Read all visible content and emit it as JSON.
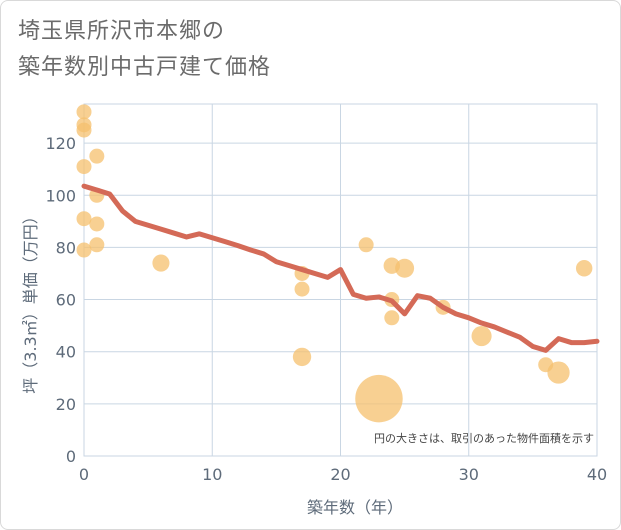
{
  "title_lines": [
    "埼玉県所沢市本郷の",
    "築年数別中古戸建て価格"
  ],
  "colors": {
    "line": "#d46a57",
    "bubble": "#f5c06e",
    "grid": "#c9d6e3",
    "text": "#5e6b7a"
  },
  "chart_data": {
    "type": "scatter",
    "title": "埼玉県所沢市本郷の築年数別中古戸建て価格",
    "xlabel": "築年数（年）",
    "ylabel": "坪（3.3㎡）単価（万円）",
    "xlim": [
      0,
      40
    ],
    "ylim": [
      0,
      135
    ],
    "xticks": [
      0,
      10,
      20,
      30,
      40
    ],
    "yticks": [
      0,
      20,
      40,
      60,
      80,
      100,
      120
    ],
    "grid": true,
    "note": "円の大きさは、取引のあった物件面積を示す",
    "bubbles": [
      {
        "x": 0,
        "y": 132,
        "size": 1
      },
      {
        "x": 0,
        "y": 127,
        "size": 1
      },
      {
        "x": 0,
        "y": 125,
        "size": 1
      },
      {
        "x": 0,
        "y": 111,
        "size": 1
      },
      {
        "x": 0,
        "y": 91,
        "size": 1
      },
      {
        "x": 0,
        "y": 79,
        "size": 1
      },
      {
        "x": 1,
        "y": 115,
        "size": 1
      },
      {
        "x": 1,
        "y": 100,
        "size": 1
      },
      {
        "x": 1,
        "y": 89,
        "size": 1
      },
      {
        "x": 1,
        "y": 81,
        "size": 1
      },
      {
        "x": 6,
        "y": 74,
        "size": 1.3
      },
      {
        "x": 17,
        "y": 70,
        "size": 1
      },
      {
        "x": 17,
        "y": 64,
        "size": 1
      },
      {
        "x": 17,
        "y": 38,
        "size": 1.5
      },
      {
        "x": 22,
        "y": 81,
        "size": 1
      },
      {
        "x": 23,
        "y": 22,
        "size": 10
      },
      {
        "x": 24,
        "y": 73,
        "size": 1.2
      },
      {
        "x": 24,
        "y": 60,
        "size": 1
      },
      {
        "x": 24,
        "y": 53,
        "size": 1
      },
      {
        "x": 25,
        "y": 72,
        "size": 1.6
      },
      {
        "x": 28,
        "y": 57,
        "size": 1
      },
      {
        "x": 31,
        "y": 46,
        "size": 1.8
      },
      {
        "x": 36,
        "y": 35,
        "size": 1
      },
      {
        "x": 37,
        "y": 32,
        "size": 2.2
      },
      {
        "x": 39,
        "y": 72,
        "size": 1.2
      }
    ],
    "trend_line": {
      "x": [
        0,
        1,
        2,
        3,
        4,
        5,
        6,
        7,
        8,
        9,
        10,
        11,
        12,
        13,
        14,
        15,
        16,
        17,
        18,
        19,
        20,
        21,
        22,
        23,
        24,
        25,
        26,
        27,
        28,
        29,
        30,
        31,
        32,
        33,
        34,
        35,
        36,
        37,
        38,
        39,
        40
      ],
      "y": [
        103.5,
        102,
        100.5,
        94,
        90,
        88.5,
        87,
        85.5,
        84,
        85.2,
        83.7,
        82.2,
        80.7,
        79,
        77.5,
        74.5,
        73,
        71.5,
        70,
        68.5,
        71.5,
        62,
        60.5,
        61,
        59.5,
        54.5,
        61.5,
        60.5,
        57,
        54.5,
        53,
        51,
        49.5,
        47.5,
        45.5,
        42,
        40.5,
        45,
        43.5,
        43.5,
        44
      ]
    }
  }
}
